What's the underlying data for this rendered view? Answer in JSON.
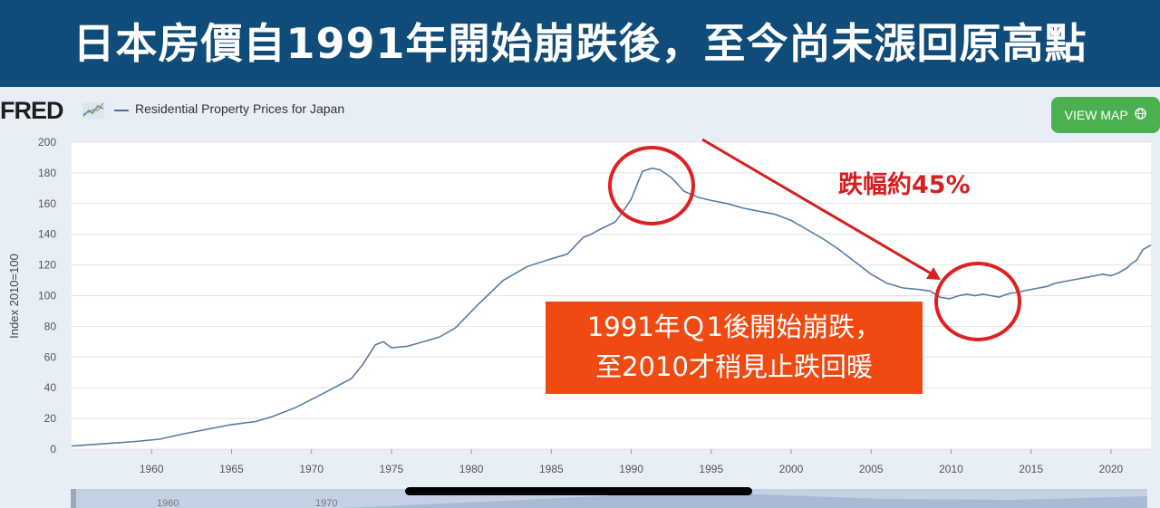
{
  "banner": {
    "title": "日本房價自1991年開始崩跌後，至今尚未漲回原高點"
  },
  "header": {
    "logo": "FRED",
    "legend_label": "Residential Property Prices for Japan",
    "view_map_label": "VIEW MAP",
    "view_map_icon": "globe-icon"
  },
  "annotations": {
    "drop_label": "跌幅約45%",
    "note_line1": "1991年Ｑ1後開始崩跌，",
    "note_line2": "至2010才稍見止跌回暖",
    "highlight_color": "#d42020",
    "note_bg": "#f04a12"
  },
  "navigator": {
    "labels": [
      "1960",
      "1970"
    ]
  },
  "chart_data": {
    "type": "line",
    "ylabel": "Index 2010=100",
    "ylim": [
      0,
      200
    ],
    "yticks": [
      0,
      20,
      40,
      60,
      80,
      100,
      120,
      140,
      160,
      180,
      200
    ],
    "xlim": [
      1955,
      2022.5
    ],
    "xticks": [
      1960,
      1965,
      1970,
      1975,
      1980,
      1985,
      1990,
      1995,
      2000,
      2005,
      2010,
      2015,
      2020
    ],
    "line_color": "#5b7ba0",
    "series": [
      {
        "name": "Residential Property Prices for Japan",
        "x": [
          1955,
          1957,
          1959,
          1960.5,
          1962,
          1963.5,
          1965,
          1966.5,
          1967.5,
          1969,
          1970.5,
          1972.5,
          1973.2,
          1974,
          1974.5,
          1975,
          1976,
          1977,
          1978,
          1979,
          1980.5,
          1982,
          1983.5,
          1985,
          1986,
          1987,
          1987.5,
          1988,
          1989,
          1989.5,
          1990,
          1990.7,
          1991.3,
          1991.8,
          1992.5,
          1993.3,
          1994.2,
          1995,
          1996,
          1997,
          1998,
          1999,
          2000,
          2001,
          2002,
          2003,
          2004,
          2005,
          2006,
          2007,
          2008,
          2008.7,
          2009.3,
          2009.9,
          2010.5,
          2011,
          2011.5,
          2012,
          2012.5,
          2013,
          2013.5,
          2014,
          2014.5,
          2015,
          2015.5,
          2016,
          2016.5,
          2017,
          2017.5,
          2018,
          2018.5,
          2019,
          2019.5,
          2020,
          2020.5,
          2021,
          2021.3,
          2021.6,
          2022,
          2022.5
        ],
        "values": [
          2,
          3.5,
          5,
          6.5,
          10,
          13,
          16,
          18,
          21,
          27,
          35,
          46,
          55,
          68,
          70,
          66,
          67,
          70,
          73,
          79,
          95,
          110,
          119,
          124,
          127,
          138,
          140,
          143,
          148,
          155,
          163,
          181,
          183,
          182,
          177,
          168,
          164,
          162,
          160,
          157,
          155,
          153,
          149,
          143,
          137,
          130,
          122,
          114,
          108,
          105,
          104,
          103,
          99,
          98,
          100,
          101,
          100,
          101,
          100,
          99,
          101,
          102,
          103,
          104,
          105,
          106,
          108,
          109,
          110,
          111,
          112,
          113,
          114,
          113,
          115,
          118,
          121,
          123,
          130,
          133
        ]
      }
    ]
  }
}
